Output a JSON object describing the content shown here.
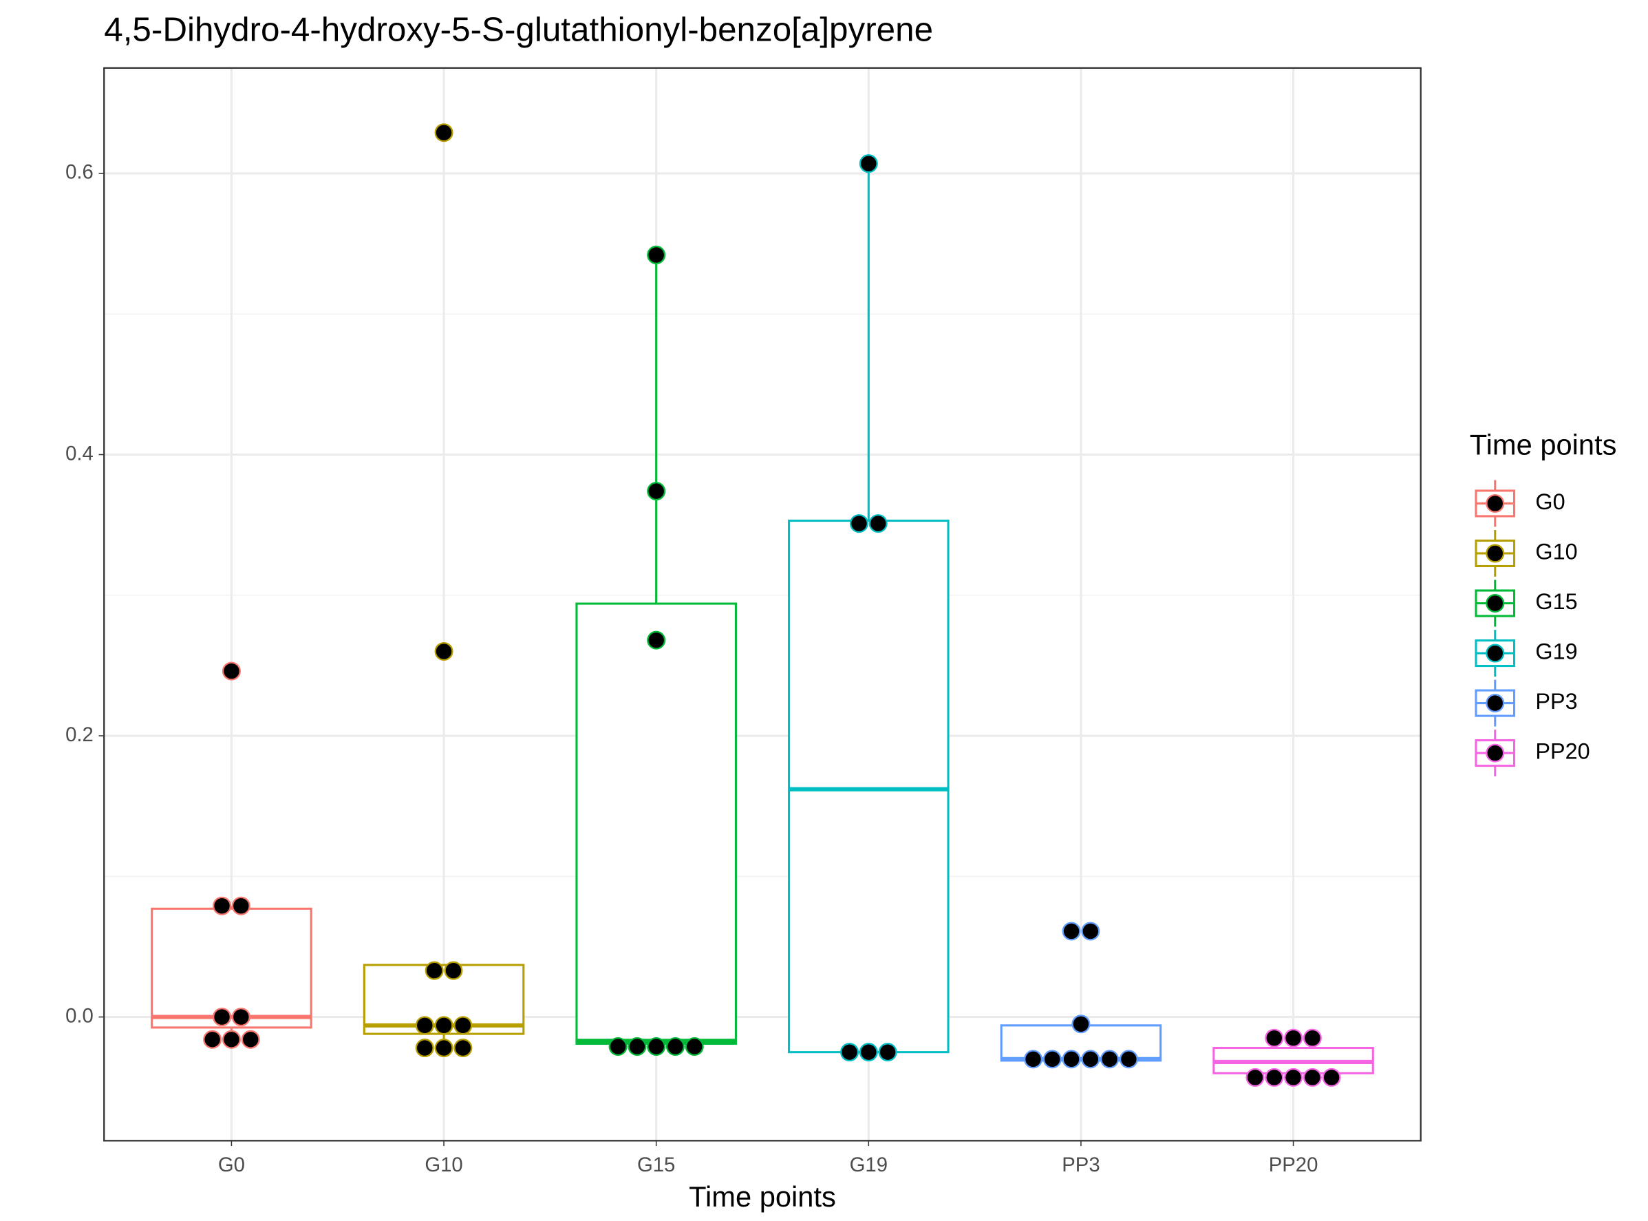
{
  "chart_data": {
    "type": "box",
    "title": "4,5-Dihydro-4-hydroxy-5-S-glutathionyl-benzo[a]pyrene",
    "x_label": "Time points",
    "legend_title": "Time points",
    "categories": [
      "G0",
      "G10",
      "G15",
      "G19",
      "PP3",
      "PP20"
    ],
    "ylim": [
      -0.088,
      0.675
    ],
    "yticks": [
      {
        "value": 0,
        "label": "0.0"
      },
      {
        "value": 0.2,
        "label": "0.2"
      },
      {
        "value": 0.4,
        "label": "0.4"
      },
      {
        "value": 0.6,
        "label": "0.6"
      }
    ],
    "grid": true,
    "series": [
      {
        "name": "G0",
        "color": "#f8766d",
        "whisker_low": -0.016,
        "q1": -0.0075,
        "median": 0.0,
        "q3": 0.077,
        "whisker_high": 0.079,
        "points": [
          0.246,
          0.079,
          0.079,
          0.0,
          0.0,
          -0.016,
          -0.016,
          -0.016
        ]
      },
      {
        "name": "G10",
        "color": "#b79f00",
        "whisker_low": -0.022,
        "q1": -0.012,
        "median": -0.006,
        "q3": 0.037,
        "whisker_high": 0.037,
        "points": [
          0.629,
          0.26,
          0.033,
          0.033,
          -0.006,
          -0.006,
          -0.006,
          -0.022,
          -0.022,
          -0.022
        ]
      },
      {
        "name": "G15",
        "color": "#00ba38",
        "whisker_low": -0.021,
        "q1": -0.019,
        "median": -0.017,
        "q3": 0.294,
        "whisker_high": 0.542,
        "points": [
          0.542,
          0.374,
          0.268,
          -0.021,
          -0.021,
          -0.021,
          -0.021,
          -0.021
        ]
      },
      {
        "name": "G19",
        "color": "#00bfc4",
        "whisker_low": -0.025,
        "q1": -0.025,
        "median": 0.162,
        "q3": 0.353,
        "whisker_high": 0.607,
        "points": [
          0.607,
          0.351,
          0.351,
          -0.025,
          -0.025,
          -0.025
        ]
      },
      {
        "name": "PP3",
        "color": "#619cff",
        "whisker_low": -0.031,
        "q1": -0.031,
        "median": -0.03,
        "q3": -0.006,
        "whisker_high": -0.005,
        "points": [
          0.061,
          0.061,
          -0.005,
          -0.03,
          -0.03,
          -0.03,
          -0.03,
          -0.03,
          -0.03
        ]
      },
      {
        "name": "PP20",
        "color": "#f564e3",
        "whisker_low": -0.043,
        "q1": -0.04,
        "median": -0.032,
        "q3": -0.022,
        "whisker_high": -0.015,
        "points": [
          -0.015,
          -0.015,
          -0.015,
          -0.043,
          -0.043,
          -0.043,
          -0.043,
          -0.043
        ]
      }
    ]
  }
}
